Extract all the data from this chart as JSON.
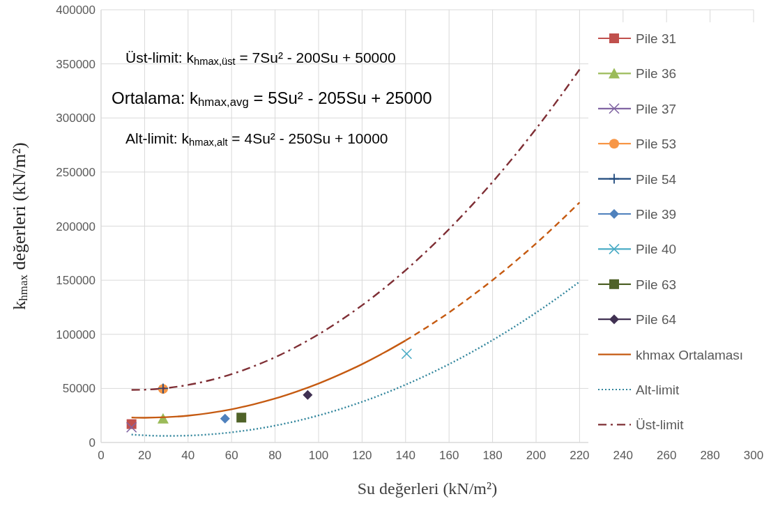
{
  "chart_data": {
    "type": "scatter",
    "xlabel": "Su değerleri (kN/m²)",
    "ylabel": "k$_{hmax}$ değerleri  (kN/m²)",
    "xlim": [
      0,
      300
    ],
    "xticks": [
      0,
      20,
      40,
      60,
      80,
      100,
      120,
      140,
      160,
      180,
      200,
      220,
      240,
      260,
      280,
      300
    ],
    "ylim": [
      0,
      400000
    ],
    "yticks": [
      0,
      50000,
      100000,
      150000,
      200000,
      250000,
      300000,
      350000,
      400000
    ],
    "grid": true,
    "legend": "right",
    "annotations": [
      "Üst-limit:   k$_{hmax,üst}$ = 7Su² - 200Su + 50000",
      "Ortalama:  k$_{hmax,avg}$ = 5Su² - 205Su + 25000",
      "Alt-limit:   k$_{hmax,alt}$ = 4Su² - 250Su + 10000"
    ],
    "series": [
      {
        "name": "Pile 31",
        "color": "#c0504d",
        "marker": "square",
        "x": [
          14
        ],
        "values": [
          17000
        ]
      },
      {
        "name": "Pile 36",
        "color": "#9bbb59",
        "marker": "triangle",
        "x": [
          28.5
        ],
        "values": [
          22000
        ]
      },
      {
        "name": "Pile 37",
        "color": "#8064a2",
        "marker": "cross",
        "x": [
          14
        ],
        "values": [
          14000
        ]
      },
      {
        "name": "Pile 53",
        "color": "#f79646",
        "marker": "circle",
        "x": [
          28.5
        ],
        "values": [
          49500
        ]
      },
      {
        "name": "Pile 54",
        "color": "#1f497d",
        "marker": "plus",
        "x": [
          28.5
        ],
        "values": [
          50000
        ]
      },
      {
        "name": "Pile 39",
        "color": "#4f81bd",
        "marker": "diamond",
        "x": [
          57
        ],
        "values": [
          22000
        ]
      },
      {
        "name": "Pile 40",
        "color": "#4bacc6",
        "marker": "cross",
        "x": [
          140.5
        ],
        "values": [
          82000
        ]
      },
      {
        "name": "Pile 63",
        "color": "#4f6228",
        "marker": "square",
        "x": [
          64.5
        ],
        "values": [
          23000
        ]
      },
      {
        "name": "Pile 64",
        "color": "#403152",
        "marker": "diamond",
        "x": [
          95
        ],
        "values": [
          44000
        ]
      },
      {
        "name": "khmax Ortalaması",
        "type": "line",
        "color": "#c55a11",
        "marker": "none",
        "line_style": "solid",
        "x": [
          14,
          20,
          30,
          40,
          50,
          60,
          70,
          80,
          90,
          100,
          110,
          120,
          130,
          140
        ],
        "values": [
          23100,
          22900,
          23400,
          24800,
          27300,
          30700,
          35200,
          40600,
          47100,
          54500,
          63000,
          72400,
          82900,
          94300
        ]
      },
      {
        "type": "line",
        "color": "#c55a11",
        "marker": "none",
        "line_style": "dashed",
        "x": [
          140,
          150,
          160,
          170,
          180,
          190,
          200,
          210,
          220
        ],
        "values": [
          94300,
          106800,
          120200,
          134700,
          150100,
          166600,
          184000,
          202500,
          221900
        ]
      },
      {
        "name": "Alt-limit",
        "type": "line",
        "color": "#31859c",
        "marker": "none",
        "line_style": "dotted",
        "x": [
          14,
          20,
          30,
          40,
          50,
          60,
          70,
          80,
          90,
          100,
          110,
          120,
          130,
          140,
          150,
          160,
          170,
          180,
          190,
          200,
          210,
          220
        ],
        "values": [
          7300,
          6600,
          6100,
          6400,
          7500,
          9400,
          12100,
          15600,
          19900,
          25000,
          30900,
          37600,
          45100,
          53400,
          62500,
          72400,
          83100,
          94600,
          106900,
          120000,
          133900,
          148600
        ]
      },
      {
        "name": "Üst-limit",
        "type": "line",
        "color": "#7f2f35",
        "marker": "none",
        "line_style": "dashdot",
        "x": [
          14,
          20,
          30,
          40,
          50,
          60,
          70,
          80,
          90,
          100,
          110,
          120,
          130,
          140,
          150,
          160,
          170,
          180,
          190,
          200,
          210,
          220
        ],
        "values": [
          48600,
          48800,
          50300,
          53200,
          57500,
          63200,
          70300,
          78800,
          88700,
          100000,
          112700,
          126800,
          142300,
          159200,
          177500,
          197200,
          218300,
          240800,
          264700,
          290000,
          316700,
          344800
        ]
      }
    ]
  }
}
